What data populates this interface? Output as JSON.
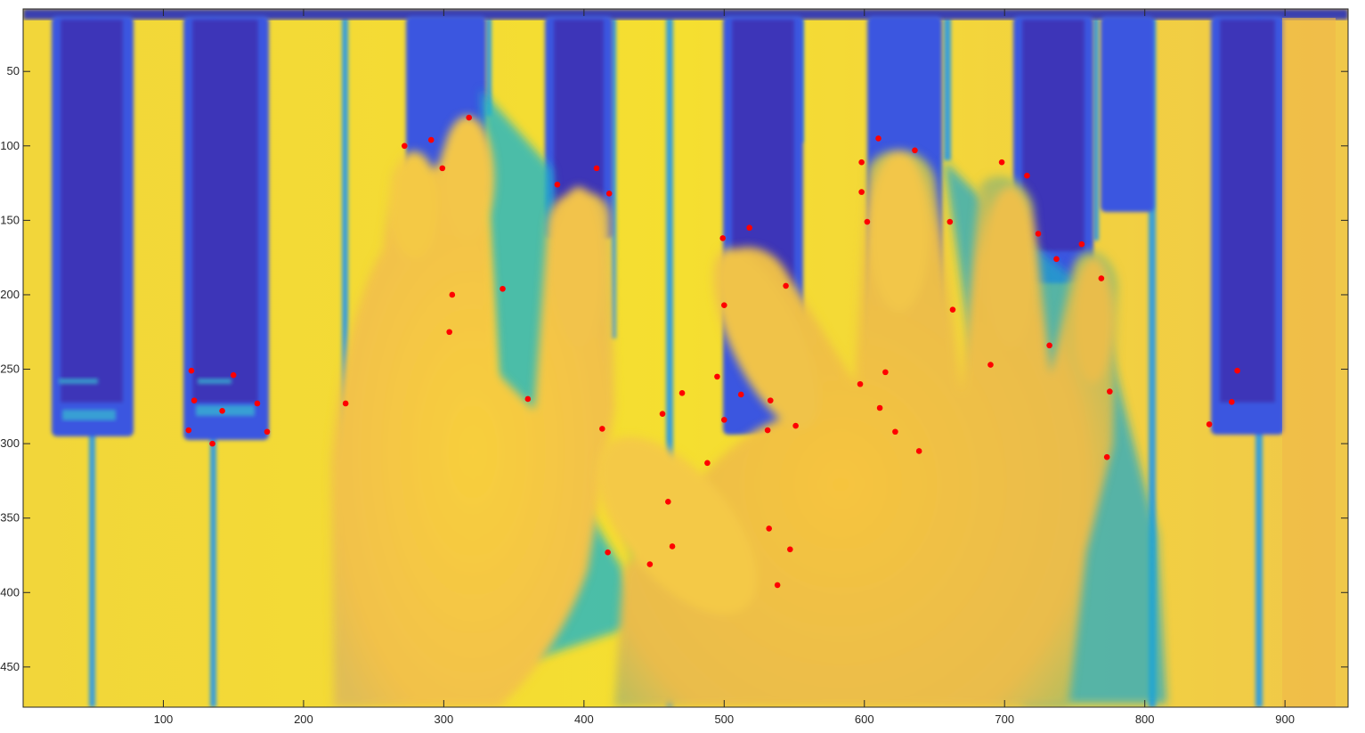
{
  "figure": {
    "x_ticks": [
      "100",
      "200",
      "300",
      "400",
      "500",
      "600",
      "700",
      "800",
      "900"
    ],
    "y_ticks": [
      "50",
      "100",
      "150",
      "200",
      "250",
      "300",
      "350",
      "400",
      "450"
    ],
    "x_range": [
      0,
      945
    ],
    "y_range": [
      8,
      477
    ],
    "y_reversed": true,
    "image_description_colormap": "parula",
    "marker_color": "#ff0000",
    "keypoints": [
      [
        272,
        100
      ],
      [
        291,
        96
      ],
      [
        299,
        115
      ],
      [
        318,
        81
      ],
      [
        306,
        200
      ],
      [
        304,
        225
      ],
      [
        342,
        196
      ],
      [
        360,
        270
      ],
      [
        230,
        273
      ],
      [
        381,
        126
      ],
      [
        409,
        115
      ],
      [
        418,
        132
      ],
      [
        413,
        290
      ],
      [
        417,
        373
      ],
      [
        456,
        280
      ],
      [
        470,
        266
      ],
      [
        460,
        339
      ],
      [
        463,
        369
      ],
      [
        447,
        381
      ],
      [
        488,
        313
      ],
      [
        499,
        162
      ],
      [
        518,
        155
      ],
      [
        500,
        207
      ],
      [
        495,
        255
      ],
      [
        512,
        267
      ],
      [
        500,
        284
      ],
      [
        533,
        271
      ],
      [
        531,
        291
      ],
      [
        551,
        288
      ],
      [
        544,
        194
      ],
      [
        532,
        357
      ],
      [
        547,
        371
      ],
      [
        538,
        395
      ],
      [
        598,
        111
      ],
      [
        610,
        95
      ],
      [
        598,
        131
      ],
      [
        602,
        151
      ],
      [
        636,
        103
      ],
      [
        597,
        260
      ],
      [
        611,
        276
      ],
      [
        615,
        252
      ],
      [
        622,
        292
      ],
      [
        639,
        305
      ],
      [
        661,
        151
      ],
      [
        663,
        210
      ],
      [
        698,
        111
      ],
      [
        716,
        120
      ],
      [
        724,
        159
      ],
      [
        737,
        176
      ],
      [
        755,
        166
      ],
      [
        732,
        234
      ],
      [
        690,
        247
      ],
      [
        769,
        189
      ],
      [
        775,
        265
      ],
      [
        773,
        309
      ],
      [
        120,
        251
      ],
      [
        122,
        271
      ],
      [
        118,
        291
      ],
      [
        142,
        278
      ],
      [
        150,
        254
      ],
      [
        135,
        300
      ],
      [
        167,
        273
      ],
      [
        174,
        292
      ],
      [
        846,
        287
      ],
      [
        862,
        272
      ],
      [
        866,
        251
      ]
    ]
  }
}
